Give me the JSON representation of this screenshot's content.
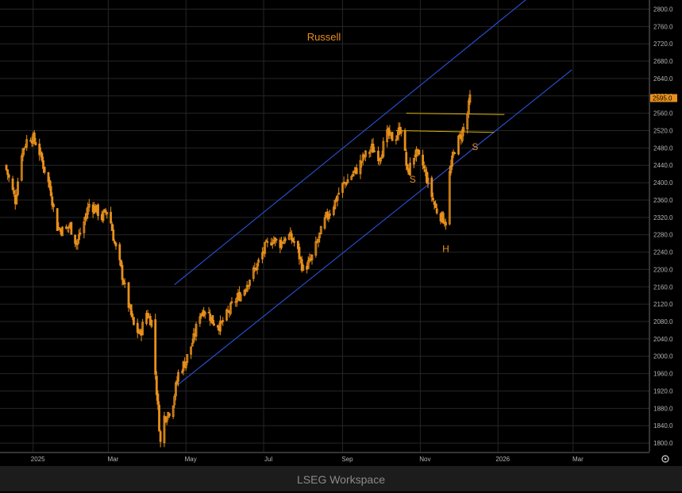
{
  "chart_data": {
    "type": "candlestick",
    "title": "Russell",
    "x_ticks": [
      "2025",
      "Mar",
      "May",
      "Jul",
      "Sep",
      "Nov",
      "2026",
      "Mar"
    ],
    "y_ticks": [
      "1800.0",
      "1840.0",
      "1880.0",
      "1920.0",
      "1960.0",
      "2000.0",
      "2040.0",
      "2080.0",
      "2120.0",
      "2160.0",
      "2200.0",
      "2240.0",
      "2280.0",
      "2320.0",
      "2360.0",
      "2400.0",
      "2440.0",
      "2480.0",
      "2520.0",
      "2560.0",
      "2600.0",
      "2640.0",
      "2680.0",
      "2720.0",
      "2760.0",
      "2800.0"
    ],
    "ylim": [
      1780,
      2810
    ],
    "last_price": "2595.0",
    "price_series": [
      [
        "2024-12-10",
        2440
      ],
      [
        "2024-12-14",
        2400
      ],
      [
        "2024-12-18",
        2360
      ],
      [
        "2024-12-23",
        2470
      ],
      [
        "2024-12-29",
        2510
      ],
      [
        "2025-01-04",
        2490
      ],
      [
        "2025-01-10",
        2430
      ],
      [
        "2025-01-15",
        2380
      ],
      [
        "2025-01-19",
        2300
      ],
      [
        "2025-01-24",
        2290
      ],
      [
        "2025-01-30",
        2300
      ],
      [
        "2025-02-04",
        2260
      ],
      [
        "2025-02-09",
        2300
      ],
      [
        "2025-02-14",
        2350
      ],
      [
        "2025-02-19",
        2340
      ],
      [
        "2025-02-24",
        2320
      ],
      [
        "2025-03-01",
        2340
      ],
      [
        "2025-03-06",
        2260
      ],
      [
        "2025-03-11",
        2200
      ],
      [
        "2025-03-16",
        2130
      ],
      [
        "2025-03-21",
        2070
      ],
      [
        "2025-03-26",
        2050
      ],
      [
        "2025-03-31",
        2100
      ],
      [
        "2025-04-04",
        2080
      ],
      [
        "2025-04-08",
        1920
      ],
      [
        "2025-04-11",
        1800
      ],
      [
        "2025-04-14",
        1860
      ],
      [
        "2025-04-20",
        1880
      ],
      [
        "2025-04-25",
        1960
      ],
      [
        "2025-05-01",
        1990
      ],
      [
        "2025-05-07",
        2040
      ],
      [
        "2025-05-12",
        2100
      ],
      [
        "2025-05-17",
        2110
      ],
      [
        "2025-05-22",
        2080
      ],
      [
        "2025-05-28",
        2070
      ],
      [
        "2025-06-03",
        2100
      ],
      [
        "2025-06-09",
        2130
      ],
      [
        "2025-06-15",
        2150
      ],
      [
        "2025-06-20",
        2180
      ],
      [
        "2025-06-26",
        2210
      ],
      [
        "2025-07-02",
        2250
      ],
      [
        "2025-07-08",
        2270
      ],
      [
        "2025-07-14",
        2260
      ],
      [
        "2025-07-20",
        2280
      ],
      [
        "2025-07-26",
        2260
      ],
      [
        "2025-08-01",
        2200
      ],
      [
        "2025-08-07",
        2220
      ],
      [
        "2025-08-13",
        2270
      ],
      [
        "2025-08-19",
        2320
      ],
      [
        "2025-08-25",
        2350
      ],
      [
        "2025-08-31",
        2390
      ],
      [
        "2025-09-06",
        2410
      ],
      [
        "2025-09-12",
        2430
      ],
      [
        "2025-09-18",
        2460
      ],
      [
        "2025-09-24",
        2480
      ],
      [
        "2025-09-30",
        2460
      ],
      [
        "2025-10-06",
        2510
      ],
      [
        "2025-10-12",
        2500
      ],
      [
        "2025-10-17",
        2530
      ],
      [
        "2025-10-22",
        2420
      ],
      [
        "2025-10-28",
        2470
      ],
      [
        "2025-11-03",
        2440
      ],
      [
        "2025-11-08",
        2390
      ],
      [
        "2025-11-13",
        2340
      ],
      [
        "2025-11-18",
        2320
      ],
      [
        "2025-11-21",
        2310
      ],
      [
        "2025-11-24",
        2420
      ],
      [
        "2025-11-28",
        2480
      ],
      [
        "2025-12-03",
        2510
      ],
      [
        "2025-12-07",
        2540
      ],
      [
        "2025-12-10",
        2595
      ]
    ],
    "channel_lines": [
      {
        "name": "upper-channel",
        "color": "#2a52d8",
        "start": [
          "2025-04-22",
          2165
        ],
        "end": [
          "2026-02-08",
          2860
        ]
      },
      {
        "name": "lower-channel",
        "color": "#2a52d8",
        "start": [
          "2025-04-25",
          1935
        ],
        "end": [
          "2026-02-28",
          2660
        ]
      }
    ],
    "neckline_lines": [
      {
        "name": "neckline-upper",
        "color": "#d8b400",
        "start": [
          "2025-10-21",
          2560
        ],
        "end": [
          "2026-01-06",
          2557
        ]
      },
      {
        "name": "neckline-lower",
        "color": "#d8b400",
        "start": [
          "2025-10-13",
          2520
        ],
        "end": [
          "2025-12-29",
          2516
        ]
      }
    ],
    "annotations": [
      {
        "text": "S",
        "x": "2025-10-26",
        "y": 2400
      },
      {
        "text": "H",
        "x": "2025-11-21",
        "y": 2240
      },
      {
        "text": "S",
        "x": "2025-12-14",
        "y": 2475
      }
    ],
    "colors": {
      "candle": "#e8901c",
      "channel": "#2a52d8",
      "neckline": "#d8b400",
      "background": "#000000",
      "grid": "#262626"
    }
  },
  "footer": {
    "text": "LSEG Workspace"
  },
  "icons": {
    "settings": "gear-icon"
  }
}
